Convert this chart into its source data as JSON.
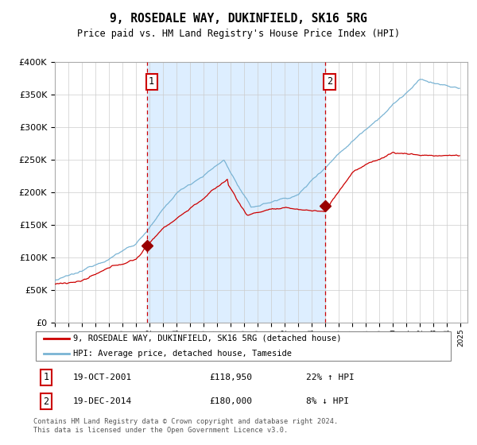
{
  "title": "9, ROSEDALE WAY, DUKINFIELD, SK16 5RG",
  "subtitle": "Price paid vs. HM Land Registry's House Price Index (HPI)",
  "legend_line1": "9, ROSEDALE WAY, DUKINFIELD, SK16 5RG (detached house)",
  "legend_line2": "HPI: Average price, detached house, Tameside",
  "sale1_date": "19-OCT-2001",
  "sale1_price": 118950,
  "sale1_label": "22% ↑ HPI",
  "sale2_date": "19-DEC-2014",
  "sale2_price": 180000,
  "sale2_label": "8% ↓ HPI",
  "footnote": "Contains HM Land Registry data © Crown copyright and database right 2024.\nThis data is licensed under the Open Government Licence v3.0.",
  "ylim": [
    0,
    400000
  ],
  "hpi_color": "#7ab4d4",
  "property_color": "#cc0000",
  "vline_color": "#cc0000",
  "span_color": "#ddeeff",
  "plot_bg": "#ffffff",
  "sale1_x": 2001.8,
  "sale2_x": 2014.96,
  "marker_color": "#990000",
  "grid_color": "#cccccc"
}
